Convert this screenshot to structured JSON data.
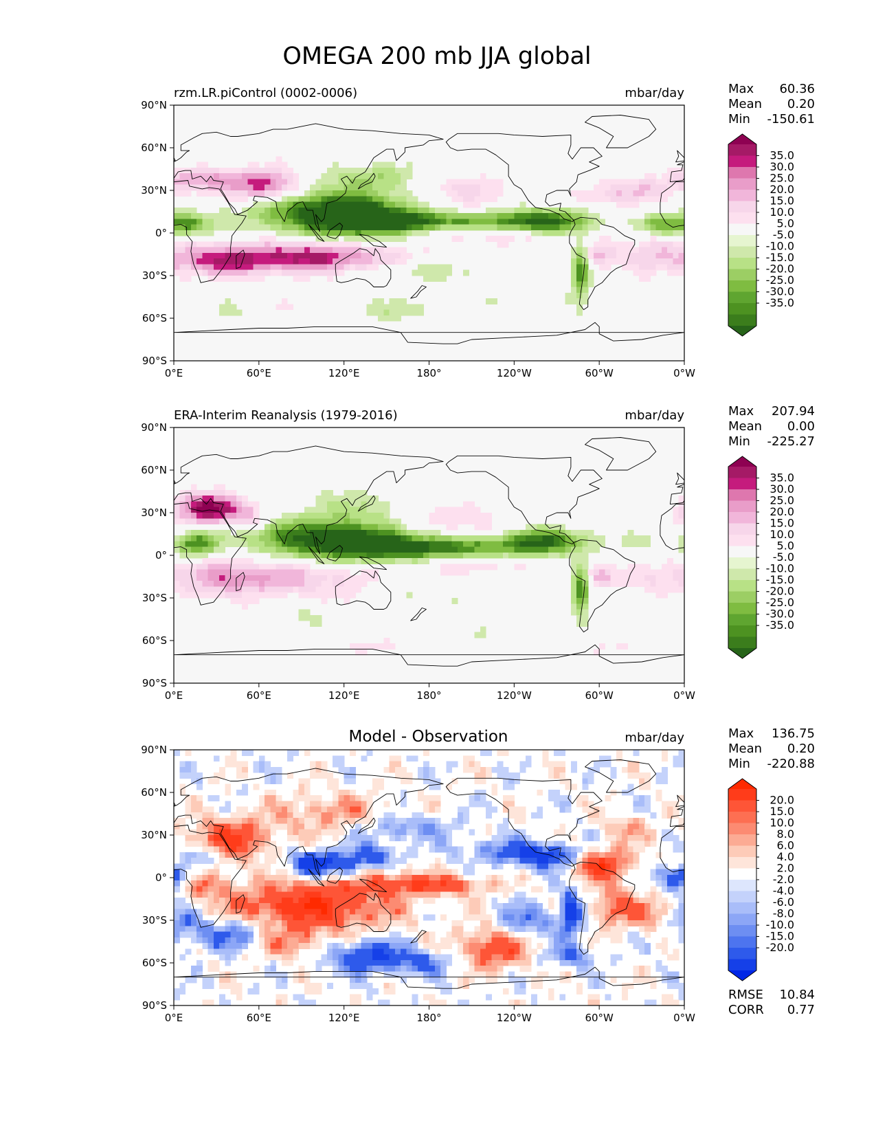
{
  "figure_title": "OMEGA 200 mb JJA global",
  "chart_data": [
    {
      "type": "heatmap",
      "title": "rzm.LR.piControl (0002-0006)",
      "units": "mbar/day",
      "x_ticks": [
        "0°E",
        "60°E",
        "120°E",
        "180°",
        "120°W",
        "60°W",
        "0°W"
      ],
      "y_ticks": [
        "90°N",
        "60°N",
        "30°N",
        "0°",
        "30°S",
        "60°S",
        "90°S"
      ],
      "xlim": [
        0,
        360
      ],
      "ylim": [
        -90,
        90
      ],
      "stats": [
        {
          "label": "Max",
          "value": "60.36"
        },
        {
          "label": "Mean",
          "value": "0.20"
        },
        {
          "label": "Min",
          "value": "-150.61"
        }
      ],
      "colorbar": {
        "levels": [
          "35.0",
          "30.0",
          "25.0",
          "20.0",
          "15.0",
          "10.0",
          "5.0",
          "-5.0",
          "-10.0",
          "-15.0",
          "-20.0",
          "-25.0",
          "-30.0",
          "-35.0"
        ],
        "colors": [
          "#8e0152",
          "#a51a66",
          "#c51b7d",
          "#de77ae",
          "#e99dc9",
          "#f1b6da",
          "#f7d6ea",
          "#fde0ef",
          "#f7f7f7",
          "#e6f5d0",
          "#cfe8ab",
          "#b8e186",
          "#9cce64",
          "#7fbc41",
          "#5fa530",
          "#4d9221",
          "#3b7d1c",
          "#276419"
        ]
      }
    },
    {
      "type": "heatmap",
      "title": "ERA-Interim Reanalysis (1979-2016)",
      "units": "mbar/day",
      "x_ticks": [
        "0°E",
        "60°E",
        "120°E",
        "180°",
        "120°W",
        "60°W",
        "0°W"
      ],
      "y_ticks": [
        "90°N",
        "60°N",
        "30°N",
        "0°",
        "30°S",
        "60°S",
        "90°S"
      ],
      "xlim": [
        0,
        360
      ],
      "ylim": [
        -90,
        90
      ],
      "stats": [
        {
          "label": "Max",
          "value": "207.94"
        },
        {
          "label": "Mean",
          "value": "0.00"
        },
        {
          "label": "Min",
          "value": "-225.27"
        }
      ],
      "colorbar": {
        "levels": [
          "35.0",
          "30.0",
          "25.0",
          "20.0",
          "15.0",
          "10.0",
          "5.0",
          "-5.0",
          "-10.0",
          "-15.0",
          "-20.0",
          "-25.0",
          "-30.0",
          "-35.0"
        ],
        "colors": [
          "#8e0152",
          "#a51a66",
          "#c51b7d",
          "#de77ae",
          "#e99dc9",
          "#f1b6da",
          "#f7d6ea",
          "#fde0ef",
          "#f7f7f7",
          "#e6f5d0",
          "#cfe8ab",
          "#b8e186",
          "#9cce64",
          "#7fbc41",
          "#5fa530",
          "#4d9221",
          "#3b7d1c",
          "#276419"
        ]
      }
    },
    {
      "type": "heatmap",
      "title": "Model - Observation",
      "units": "mbar/day",
      "x_ticks": [
        "0°E",
        "60°E",
        "120°E",
        "180°",
        "120°W",
        "60°W",
        "0°W"
      ],
      "y_ticks": [
        "90°N",
        "60°N",
        "30°N",
        "0°",
        "30°S",
        "60°S",
        "90°S"
      ],
      "xlim": [
        0,
        360
      ],
      "ylim": [
        -90,
        90
      ],
      "stats": [
        {
          "label": "Max",
          "value": "136.75"
        },
        {
          "label": "Mean",
          "value": "0.20"
        },
        {
          "label": "Min",
          "value": "-220.88"
        }
      ],
      "extra_stats": [
        {
          "label": "RMSE",
          "value": "10.84"
        },
        {
          "label": "CORR",
          "value": "0.77"
        }
      ],
      "colorbar": {
        "levels": [
          "20.0",
          "15.0",
          "10.0",
          "8.0",
          "6.0",
          "4.0",
          "2.0",
          "-2.0",
          "-4.0",
          "-6.0",
          "-8.0",
          "-10.0",
          "-15.0",
          "-20.0"
        ],
        "colors": [
          "#ff2a00",
          "#ff3c1a",
          "#fe5537",
          "#fd6f52",
          "#fc8b72",
          "#fcab94",
          "#fdcbb8",
          "#fee5da",
          "#ffffff",
          "#dde6fd",
          "#c4d2fb",
          "#a9bdf9",
          "#8ca6f6",
          "#6d8ef2",
          "#4d74ef",
          "#2e5aeb",
          "#1540e8",
          "#0026e6"
        ]
      }
    }
  ]
}
